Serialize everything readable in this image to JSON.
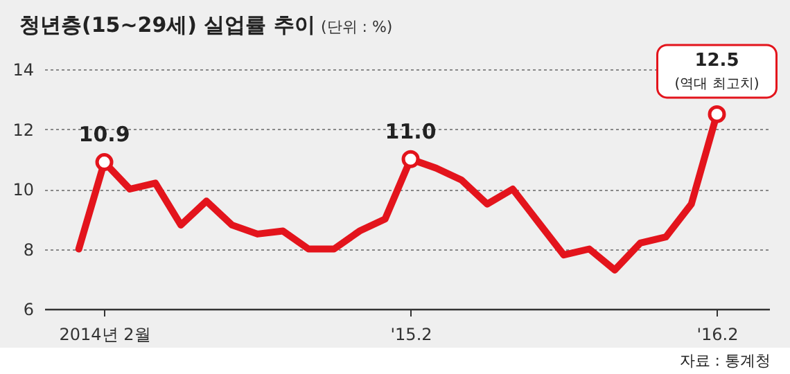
{
  "chart_data": {
    "type": "line",
    "title": "청년층(15~29세) 실업률 추이",
    "subtitle": "(단위 : %)",
    "categories": [
      null,
      "2014년 2월",
      null,
      null,
      null,
      null,
      null,
      null,
      null,
      null,
      null,
      null,
      null,
      "'15.2",
      null,
      null,
      null,
      null,
      null,
      null,
      null,
      null,
      null,
      null,
      null,
      "'16.2"
    ],
    "series": [
      {
        "color": "#e3141c",
        "values": [
          8.0,
          10.9,
          10.0,
          10.2,
          8.8,
          9.6,
          8.8,
          8.5,
          8.6,
          8.0,
          8.0,
          8.6,
          9.0,
          11.0,
          10.7,
          10.3,
          9.5,
          10.0,
          8.9,
          7.8,
          8.0,
          7.3,
          8.2,
          8.4,
          9.5,
          12.5
        ],
        "value_labels": [
          null,
          "10.9",
          null,
          null,
          null,
          null,
          null,
          null,
          null,
          null,
          null,
          null,
          null,
          "11.0",
          null,
          null,
          null,
          null,
          null,
          null,
          null,
          null,
          null,
          null,
          null,
          "12.5"
        ]
      }
    ],
    "ylim": [
      6,
      14
    ],
    "yticks": [
      6,
      8,
      10,
      12,
      14
    ],
    "grid": "y",
    "annotations": [
      {
        "text": "(역대 최고치)",
        "x": "'16.2",
        "y": 12.5
      },
      "자료 : 통계청"
    ]
  }
}
